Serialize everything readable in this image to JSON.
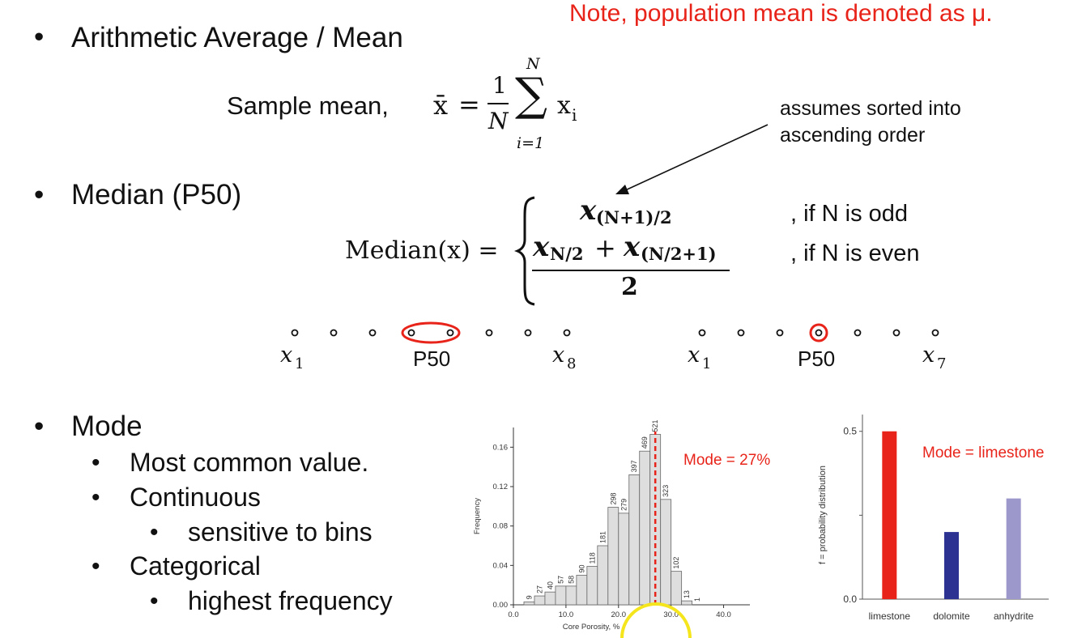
{
  "note": "Note, population mean is denoted as μ.",
  "bullets": {
    "mean": "Arithmetic Average / Mean",
    "median": "Median (P50)",
    "mode": "Mode"
  },
  "mean_formula": {
    "label": "Sample mean,",
    "lhs": "x̄",
    "eq": "=",
    "num": "1",
    "den": "N",
    "sum": "∑",
    "upper": "N",
    "lower": "i=1",
    "term": "x",
    "term_sub": "i"
  },
  "annotation": {
    "line1": "assumes sorted into",
    "line2": "ascending order"
  },
  "median_formula": {
    "lhs": "Median(x) =",
    "odd_expr": "x",
    "odd_sub": "(N+1)/2",
    "odd_cond": ", if N is odd",
    "even_a": "x",
    "even_a_sub": "N/2",
    "even_plus": "+",
    "even_b": "x",
    "even_b_sub": "(N/2+1)",
    "even_den": "2",
    "even_cond": ", if N is even"
  },
  "dotline_even": {
    "first": "x",
    "first_sub": "1",
    "mid": "P50",
    "last": "x",
    "last_sub": "8",
    "count": 8
  },
  "dotline_odd": {
    "first": "x",
    "first_sub": "1",
    "mid": "P50",
    "last": "x",
    "last_sub": "7",
    "count": 7
  },
  "mode_items": {
    "most_common": "Most common value.",
    "continuous": "Continuous",
    "sensitive": "sensitive to bins",
    "categorical": "Categorical",
    "highest": "highest frequency"
  },
  "colors": {
    "accent_red": "#e8241a",
    "dark_blue": "#2b3292",
    "light_purple": "#9d98cc",
    "bar_gray": "#dedede",
    "highlight_yellow": "#f5e51c"
  },
  "chart_data": [
    {
      "type": "bar",
      "title": "",
      "xlabel": "Core Porosity, %",
      "ylabel": "Frequency",
      "annotation": "Mode = 27%",
      "mode_value": 27,
      "xlim": [
        0,
        45
      ],
      "ylim": [
        0,
        0.18
      ],
      "xticks": [
        "0.0",
        "10.0",
        "20.0",
        "30.0",
        "40.0"
      ],
      "yticks": [
        "0.00",
        "0.04",
        "0.08",
        "0.12",
        "0.16"
      ],
      "bin_width": 2,
      "bin_starts": [
        2,
        4,
        6,
        8,
        10,
        12,
        14,
        16,
        18,
        20,
        22,
        24,
        26,
        28,
        30,
        32
      ],
      "values": [
        0.003,
        0.009,
        0.013,
        0.019,
        0.019,
        0.03,
        0.039,
        0.06,
        0.099,
        0.093,
        0.132,
        0.156,
        0.173,
        0.107,
        0.034,
        0.004
      ],
      "bar_labels": [
        "9",
        "27",
        "40",
        "57",
        "58",
        "90",
        "118",
        "181",
        "298",
        "279",
        "397",
        "469",
        "521",
        "323",
        "102",
        "13"
      ],
      "extra_label": "1"
    },
    {
      "type": "bar",
      "title": "",
      "xlabel": "",
      "ylabel": "f = probability distribution",
      "annotation": "Mode = limestone",
      "categories": [
        "limestone",
        "dolomite",
        "anhydrite"
      ],
      "values": [
        0.5,
        0.2,
        0.3
      ],
      "ylim": [
        0,
        0.55
      ],
      "yticks": [
        "0.0",
        "0.5"
      ]
    }
  ]
}
